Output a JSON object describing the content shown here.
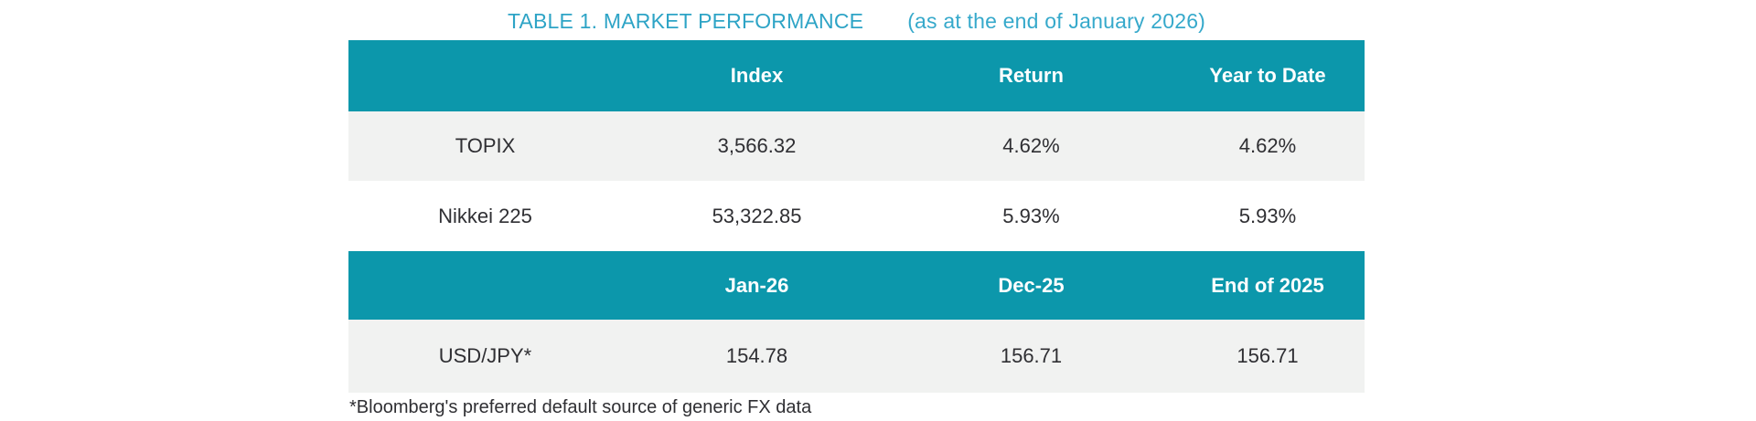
{
  "title": {
    "main": "TABLE 1. MARKET PERFORMANCE",
    "subtitle": "(as at the end of January 2026)"
  },
  "colors": {
    "header_background": "#0c97ab",
    "alternate_row_background": "#f1f2f1",
    "title_teal": "#2ea4c6",
    "body_text": "#2f2f33",
    "header_text": "#ffffff"
  },
  "market_table": {
    "headers": [
      "",
      "Index",
      "Return",
      "Year to Date"
    ],
    "rows": [
      {
        "label": "TOPIX",
        "index": "3,566.32",
        "return": "4.62%",
        "ytd": "4.62%"
      },
      {
        "label": "Nikkei 225",
        "index": "53,322.85",
        "return": "5.93%",
        "ytd": "5.93%"
      }
    ]
  },
  "fx_table": {
    "headers": [
      "",
      "Jan-26",
      "Dec-25",
      "End of 2025"
    ],
    "rows": [
      {
        "label": "USD/JPY*",
        "jan_26": "154.78",
        "dec_25": "156.71",
        "end_of_2025": "156.71"
      }
    ]
  },
  "footnote": "*Bloomberg's preferred default source of generic FX data"
}
